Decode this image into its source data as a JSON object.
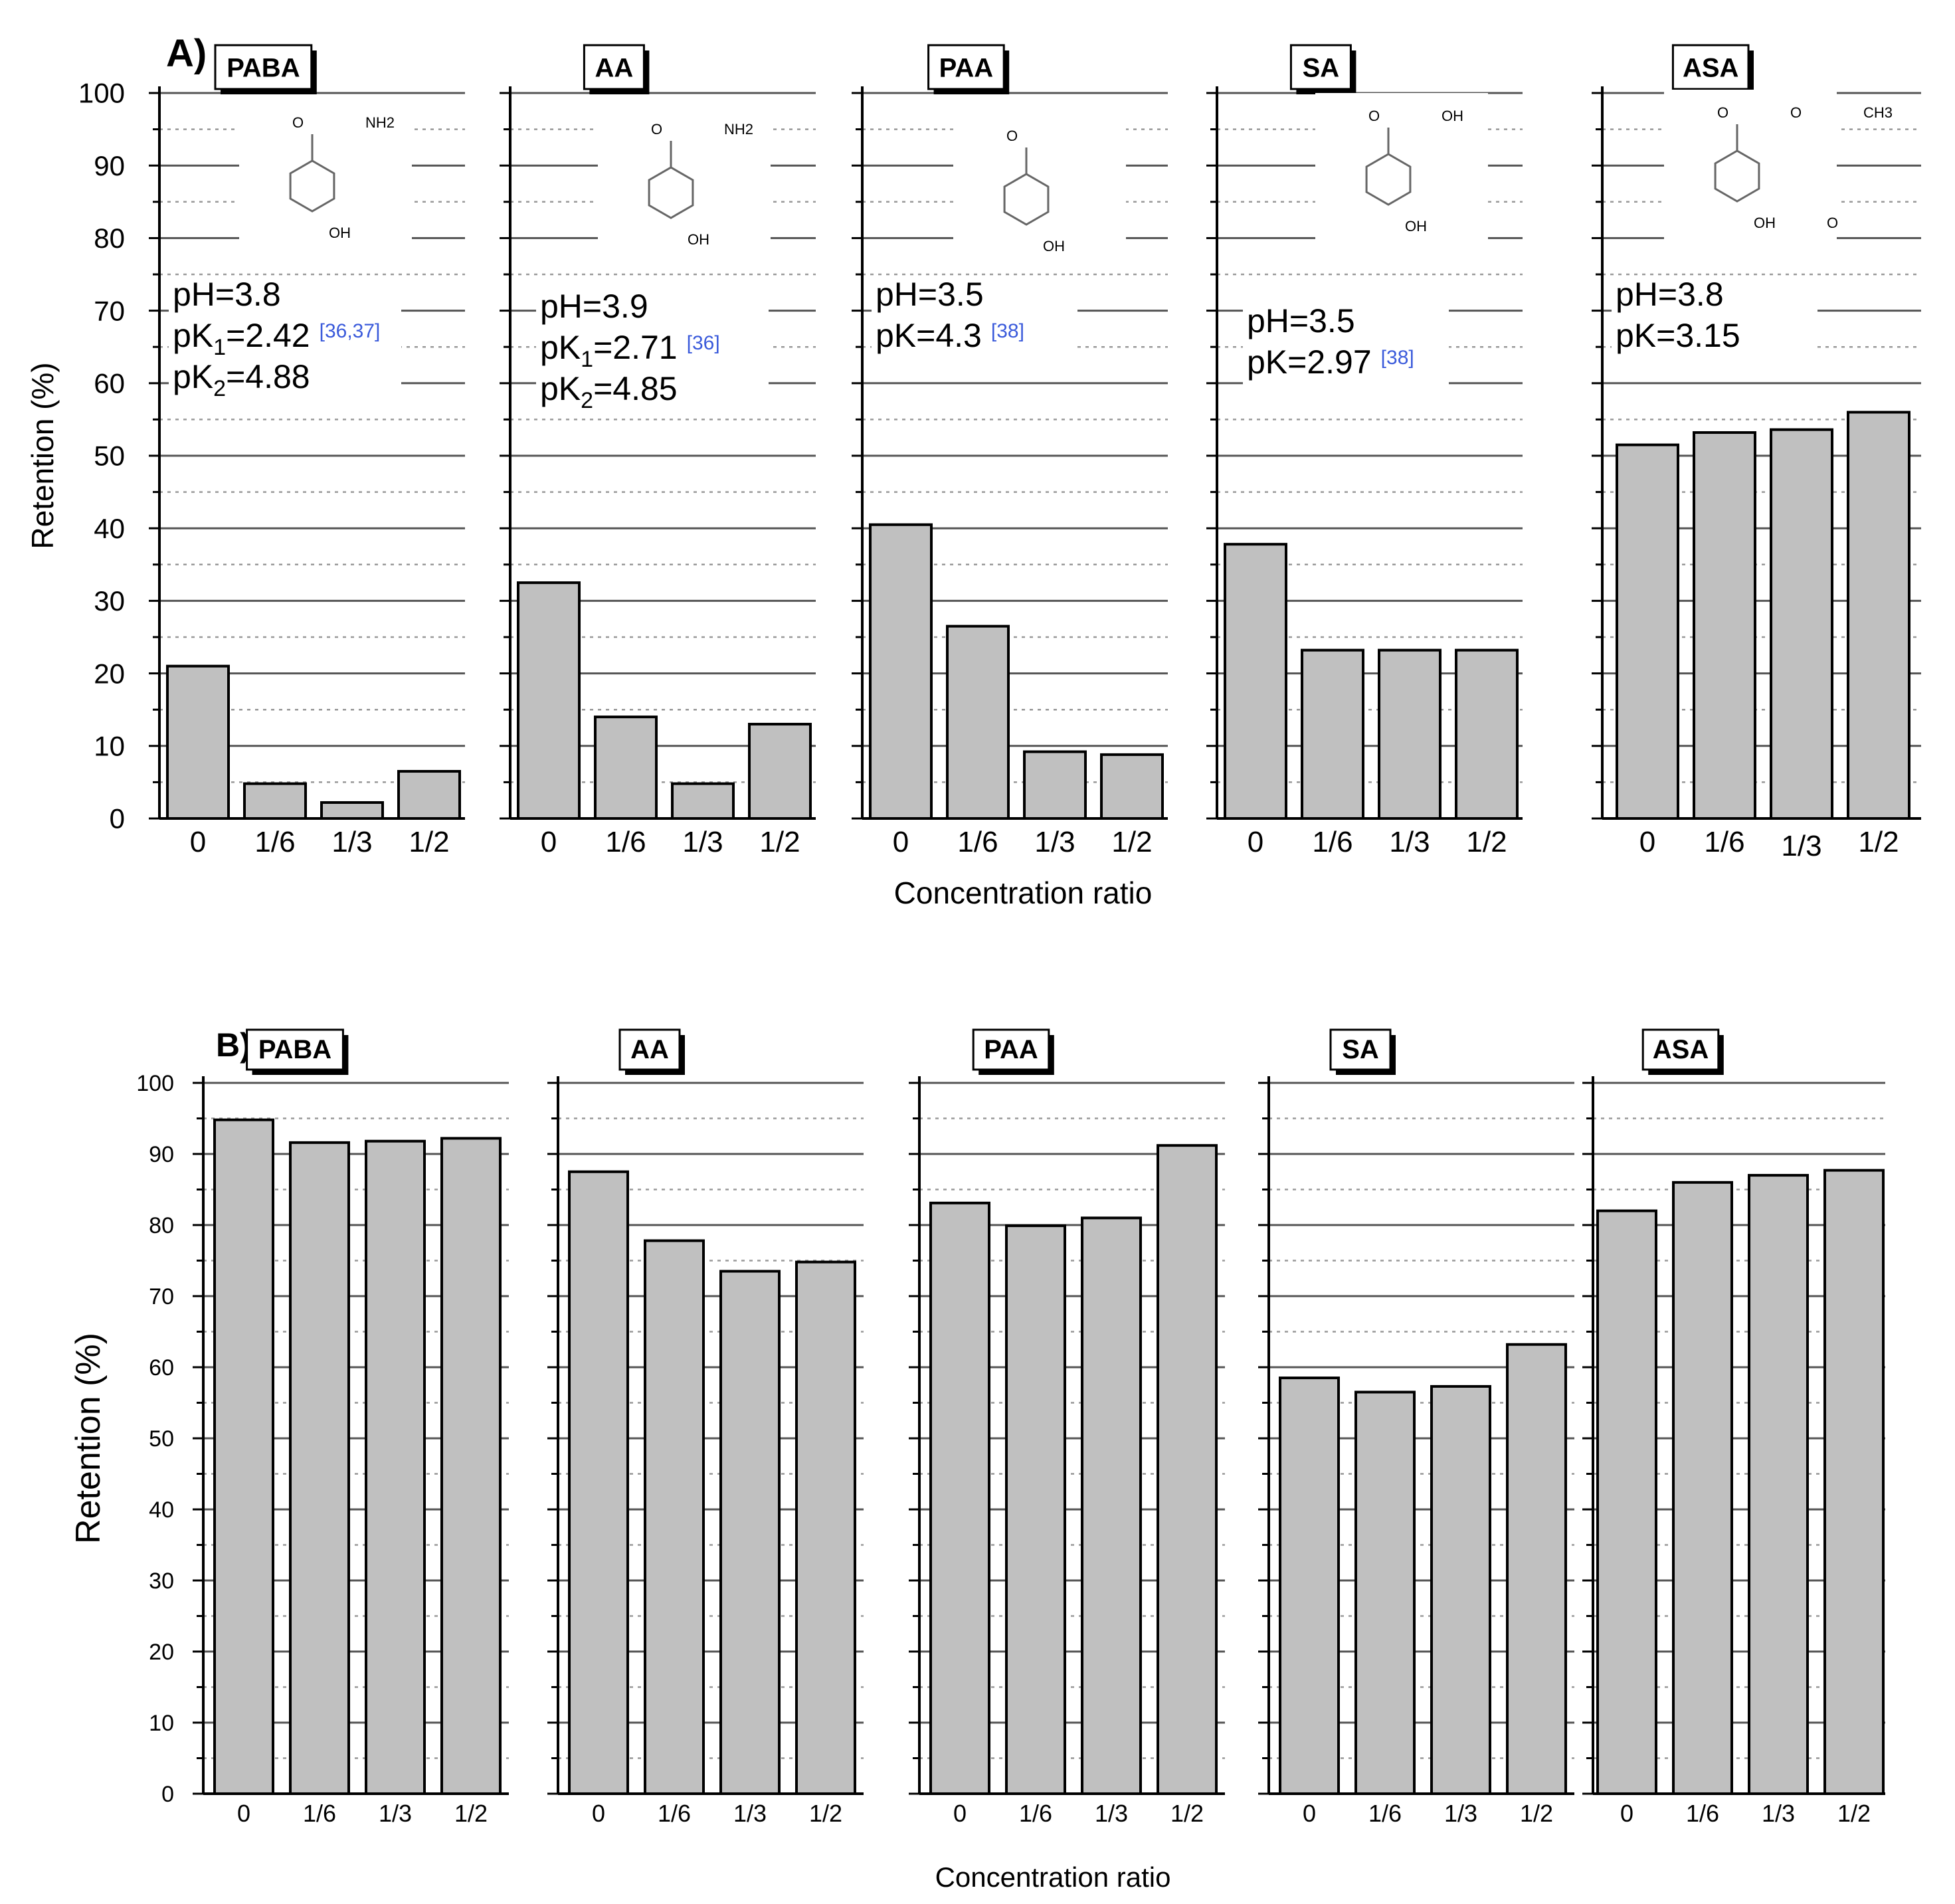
{
  "figure": {
    "xlabel": "Concentration ratio",
    "ylabel": "Retention (%)"
  },
  "colors": {
    "bar_fill": "#c0c0c0",
    "bar_stroke": "#000000",
    "grid_major": "#555555",
    "grid_minor": "#999999",
    "cite": "#3b5bdb"
  },
  "chart_data": [
    {
      "panel_label": "A)",
      "type": "bar",
      "ylim": [
        0,
        100
      ],
      "yticks": [
        "0",
        "10",
        "20",
        "30",
        "40",
        "50",
        "60",
        "70",
        "80",
        "90",
        "100"
      ],
      "ylabel": "Retention (%)",
      "xlabel": "Concentration ratio",
      "categories": [
        "0",
        "1/6",
        "1/3",
        "1/2"
      ],
      "series": [
        {
          "name": "PABA",
          "values": [
            21,
            4.8,
            2.2,
            6.5
          ],
          "notes": [
            {
              "main": "pH=3.8"
            },
            {
              "pre": "pK",
              "sub": "1",
              "post": "=2.42",
              "cite": "[36,37]"
            },
            {
              "pre": "pK",
              "sub": "2",
              "post": "=4.88"
            }
          ]
        },
        {
          "name": "AA",
          "values": [
            32.5,
            14,
            4.8,
            13
          ],
          "notes": [
            {
              "main": "pH=3.9"
            },
            {
              "pre": "pK",
              "sub": "1",
              "post": "=2.71",
              "cite": "[36]"
            },
            {
              "pre": "pK",
              "sub": "2",
              "post": "=4.85"
            }
          ]
        },
        {
          "name": "PAA",
          "values": [
            40.5,
            26.5,
            9.2,
            8.8
          ],
          "notes": [
            {
              "main": "pH=3.5"
            },
            {
              "pre": "pK=4.3",
              "cite": "[38]"
            }
          ]
        },
        {
          "name": "SA",
          "values": [
            37.8,
            23.2,
            23.2,
            23.2
          ],
          "notes": [
            {
              "main": "pH=3.5"
            },
            {
              "pre": "pK=2.97",
              "cite": "[38]"
            }
          ]
        },
        {
          "name": "ASA",
          "values": [
            51.5,
            53.2,
            53.6,
            56
          ],
          "notes": [
            {
              "main": "pH=3.8"
            },
            {
              "pre": "pK=3.15"
            }
          ]
        }
      ]
    },
    {
      "panel_label": "B)",
      "type": "bar",
      "ylim": [
        0,
        100
      ],
      "yticks": [
        "0",
        "10",
        "20",
        "30",
        "40",
        "50",
        "60",
        "70",
        "80",
        "90",
        "100"
      ],
      "ylabel": "Retention (%)",
      "xlabel": "Concentration ratio",
      "categories": [
        "0",
        "1/6",
        "1/3",
        "1/2"
      ],
      "series": [
        {
          "name": "PABA",
          "values": [
            94.8,
            91.6,
            91.8,
            92.2
          ]
        },
        {
          "name": "AA",
          "values": [
            87.5,
            77.8,
            73.5,
            74.8
          ]
        },
        {
          "name": "PAA",
          "values": [
            83.1,
            79.9,
            81,
            91.2
          ]
        },
        {
          "name": "SA",
          "values": [
            58.5,
            56.5,
            57.3,
            63.2
          ]
        },
        {
          "name": "ASA",
          "values": [
            82,
            86,
            87,
            87.7
          ]
        }
      ]
    }
  ],
  "molecules": {
    "PABA": {
      "groups": [
        "O",
        "OH",
        "NH2"
      ]
    },
    "AA": {
      "groups": [
        "O",
        "OH",
        "NH2"
      ]
    },
    "PAA": {
      "groups": [
        "O",
        "OH"
      ]
    },
    "SA": {
      "groups": [
        "O",
        "OH",
        "OH"
      ]
    },
    "ASA": {
      "groups": [
        "O",
        "OH",
        "O",
        "O",
        "CH3"
      ]
    }
  }
}
